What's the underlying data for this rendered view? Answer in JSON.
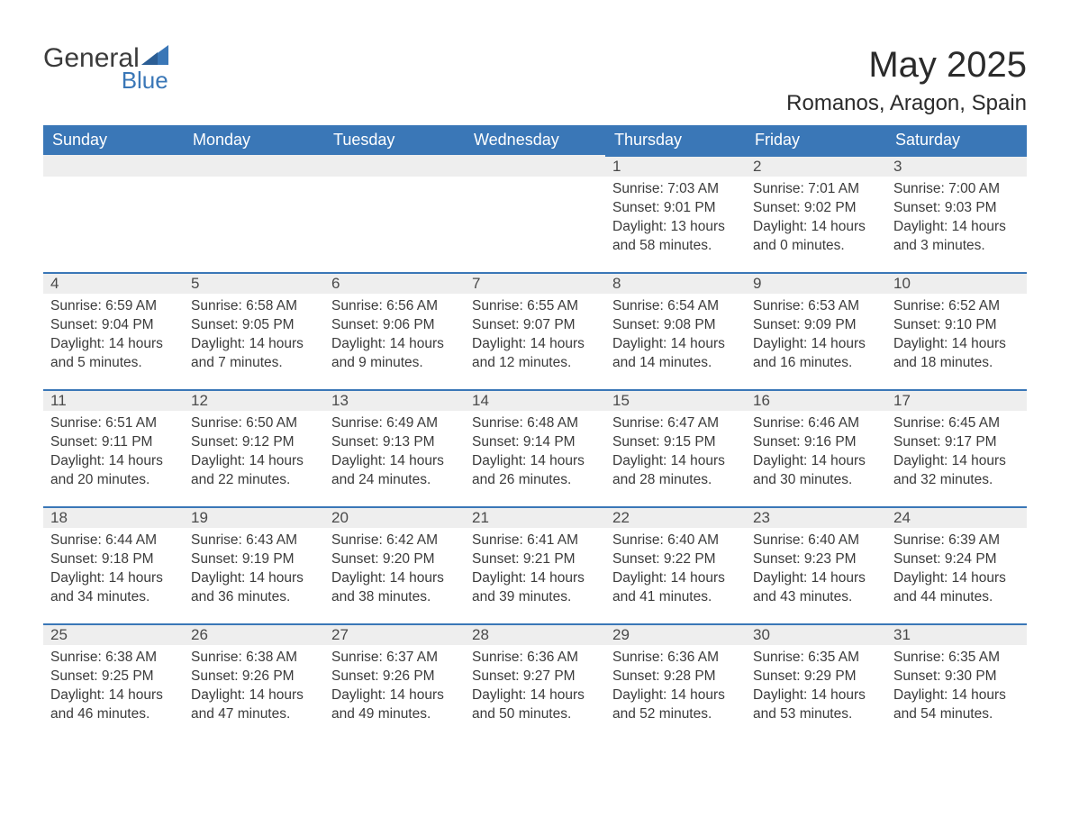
{
  "logo": {
    "general": "General",
    "blue": "Blue"
  },
  "title": "May 2025",
  "location": "Romanos, Aragon, Spain",
  "colors": {
    "header_bg": "#3a77b7",
    "header_text": "#ffffff",
    "daynum_bg": "#eeeeee",
    "daynum_border": "#3a77b7",
    "text": "#3b3b3b",
    "logo_blue": "#3a77b7"
  },
  "typography": {
    "title_fontsize": 40,
    "location_fontsize": 24,
    "dayheader_fontsize": 18,
    "daynum_fontsize": 17,
    "body_fontsize": 15.5
  },
  "columns": [
    "Sunday",
    "Monday",
    "Tuesday",
    "Wednesday",
    "Thursday",
    "Friday",
    "Saturday"
  ],
  "weeks": [
    [
      {
        "day": "",
        "sunrise": "",
        "sunset": "",
        "daylight": ""
      },
      {
        "day": "",
        "sunrise": "",
        "sunset": "",
        "daylight": ""
      },
      {
        "day": "",
        "sunrise": "",
        "sunset": "",
        "daylight": ""
      },
      {
        "day": "",
        "sunrise": "",
        "sunset": "",
        "daylight": ""
      },
      {
        "day": "1",
        "sunrise": "Sunrise: 7:03 AM",
        "sunset": "Sunset: 9:01 PM",
        "daylight": "Daylight: 13 hours and 58 minutes."
      },
      {
        "day": "2",
        "sunrise": "Sunrise: 7:01 AM",
        "sunset": "Sunset: 9:02 PM",
        "daylight": "Daylight: 14 hours and 0 minutes."
      },
      {
        "day": "3",
        "sunrise": "Sunrise: 7:00 AM",
        "sunset": "Sunset: 9:03 PM",
        "daylight": "Daylight: 14 hours and 3 minutes."
      }
    ],
    [
      {
        "day": "4",
        "sunrise": "Sunrise: 6:59 AM",
        "sunset": "Sunset: 9:04 PM",
        "daylight": "Daylight: 14 hours and 5 minutes."
      },
      {
        "day": "5",
        "sunrise": "Sunrise: 6:58 AM",
        "sunset": "Sunset: 9:05 PM",
        "daylight": "Daylight: 14 hours and 7 minutes."
      },
      {
        "day": "6",
        "sunrise": "Sunrise: 6:56 AM",
        "sunset": "Sunset: 9:06 PM",
        "daylight": "Daylight: 14 hours and 9 minutes."
      },
      {
        "day": "7",
        "sunrise": "Sunrise: 6:55 AM",
        "sunset": "Sunset: 9:07 PM",
        "daylight": "Daylight: 14 hours and 12 minutes."
      },
      {
        "day": "8",
        "sunrise": "Sunrise: 6:54 AM",
        "sunset": "Sunset: 9:08 PM",
        "daylight": "Daylight: 14 hours and 14 minutes."
      },
      {
        "day": "9",
        "sunrise": "Sunrise: 6:53 AM",
        "sunset": "Sunset: 9:09 PM",
        "daylight": "Daylight: 14 hours and 16 minutes."
      },
      {
        "day": "10",
        "sunrise": "Sunrise: 6:52 AM",
        "sunset": "Sunset: 9:10 PM",
        "daylight": "Daylight: 14 hours and 18 minutes."
      }
    ],
    [
      {
        "day": "11",
        "sunrise": "Sunrise: 6:51 AM",
        "sunset": "Sunset: 9:11 PM",
        "daylight": "Daylight: 14 hours and 20 minutes."
      },
      {
        "day": "12",
        "sunrise": "Sunrise: 6:50 AM",
        "sunset": "Sunset: 9:12 PM",
        "daylight": "Daylight: 14 hours and 22 minutes."
      },
      {
        "day": "13",
        "sunrise": "Sunrise: 6:49 AM",
        "sunset": "Sunset: 9:13 PM",
        "daylight": "Daylight: 14 hours and 24 minutes."
      },
      {
        "day": "14",
        "sunrise": "Sunrise: 6:48 AM",
        "sunset": "Sunset: 9:14 PM",
        "daylight": "Daylight: 14 hours and 26 minutes."
      },
      {
        "day": "15",
        "sunrise": "Sunrise: 6:47 AM",
        "sunset": "Sunset: 9:15 PM",
        "daylight": "Daylight: 14 hours and 28 minutes."
      },
      {
        "day": "16",
        "sunrise": "Sunrise: 6:46 AM",
        "sunset": "Sunset: 9:16 PM",
        "daylight": "Daylight: 14 hours and 30 minutes."
      },
      {
        "day": "17",
        "sunrise": "Sunrise: 6:45 AM",
        "sunset": "Sunset: 9:17 PM",
        "daylight": "Daylight: 14 hours and 32 minutes."
      }
    ],
    [
      {
        "day": "18",
        "sunrise": "Sunrise: 6:44 AM",
        "sunset": "Sunset: 9:18 PM",
        "daylight": "Daylight: 14 hours and 34 minutes."
      },
      {
        "day": "19",
        "sunrise": "Sunrise: 6:43 AM",
        "sunset": "Sunset: 9:19 PM",
        "daylight": "Daylight: 14 hours and 36 minutes."
      },
      {
        "day": "20",
        "sunrise": "Sunrise: 6:42 AM",
        "sunset": "Sunset: 9:20 PM",
        "daylight": "Daylight: 14 hours and 38 minutes."
      },
      {
        "day": "21",
        "sunrise": "Sunrise: 6:41 AM",
        "sunset": "Sunset: 9:21 PM",
        "daylight": "Daylight: 14 hours and 39 minutes."
      },
      {
        "day": "22",
        "sunrise": "Sunrise: 6:40 AM",
        "sunset": "Sunset: 9:22 PM",
        "daylight": "Daylight: 14 hours and 41 minutes."
      },
      {
        "day": "23",
        "sunrise": "Sunrise: 6:40 AM",
        "sunset": "Sunset: 9:23 PM",
        "daylight": "Daylight: 14 hours and 43 minutes."
      },
      {
        "day": "24",
        "sunrise": "Sunrise: 6:39 AM",
        "sunset": "Sunset: 9:24 PM",
        "daylight": "Daylight: 14 hours and 44 minutes."
      }
    ],
    [
      {
        "day": "25",
        "sunrise": "Sunrise: 6:38 AM",
        "sunset": "Sunset: 9:25 PM",
        "daylight": "Daylight: 14 hours and 46 minutes."
      },
      {
        "day": "26",
        "sunrise": "Sunrise: 6:38 AM",
        "sunset": "Sunset: 9:26 PM",
        "daylight": "Daylight: 14 hours and 47 minutes."
      },
      {
        "day": "27",
        "sunrise": "Sunrise: 6:37 AM",
        "sunset": "Sunset: 9:26 PM",
        "daylight": "Daylight: 14 hours and 49 minutes."
      },
      {
        "day": "28",
        "sunrise": "Sunrise: 6:36 AM",
        "sunset": "Sunset: 9:27 PM",
        "daylight": "Daylight: 14 hours and 50 minutes."
      },
      {
        "day": "29",
        "sunrise": "Sunrise: 6:36 AM",
        "sunset": "Sunset: 9:28 PM",
        "daylight": "Daylight: 14 hours and 52 minutes."
      },
      {
        "day": "30",
        "sunrise": "Sunrise: 6:35 AM",
        "sunset": "Sunset: 9:29 PM",
        "daylight": "Daylight: 14 hours and 53 minutes."
      },
      {
        "day": "31",
        "sunrise": "Sunrise: 6:35 AM",
        "sunset": "Sunset: 9:30 PM",
        "daylight": "Daylight: 14 hours and 54 minutes."
      }
    ]
  ]
}
